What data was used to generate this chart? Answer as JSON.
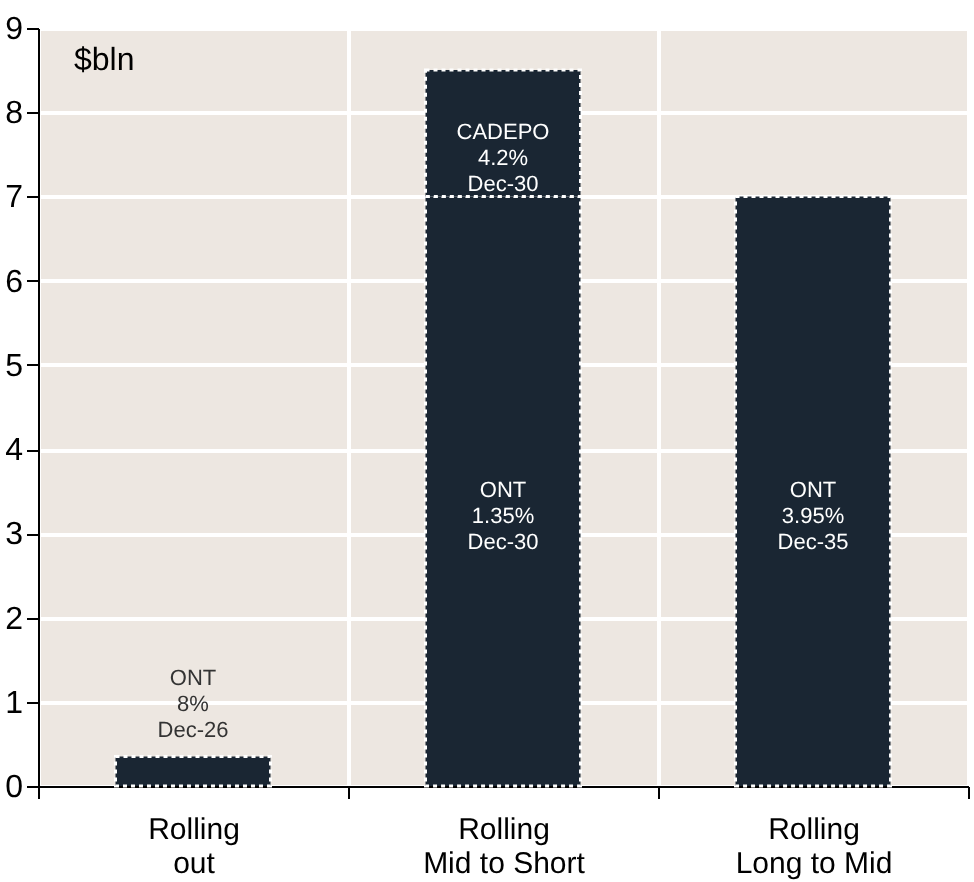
{
  "chart_data": {
    "type": "bar",
    "stacked": true,
    "ylabel": "$bln",
    "categories": [
      "Rolling\nout",
      "Rolling\nMid to Short",
      "Rolling\nLong to Mid"
    ],
    "series": [
      {
        "color": "#1a2633",
        "values": [
          0.35,
          7.0,
          7.0
        ]
      },
      {
        "color": "#1a2633",
        "values": [
          null,
          1.5,
          null
        ]
      }
    ],
    "annotations": [
      "ONT\n8%\nDec-26",
      "ONT\n1.35%\nDec-30",
      "CADEPO\n4.2%\nDec-30",
      "ONT\n3.95%\nDec-35"
    ],
    "ylim": [
      0,
      9
    ],
    "yticks": [
      0,
      1,
      2,
      3,
      4,
      5,
      6,
      7,
      8,
      9
    ],
    "grid": true
  }
}
